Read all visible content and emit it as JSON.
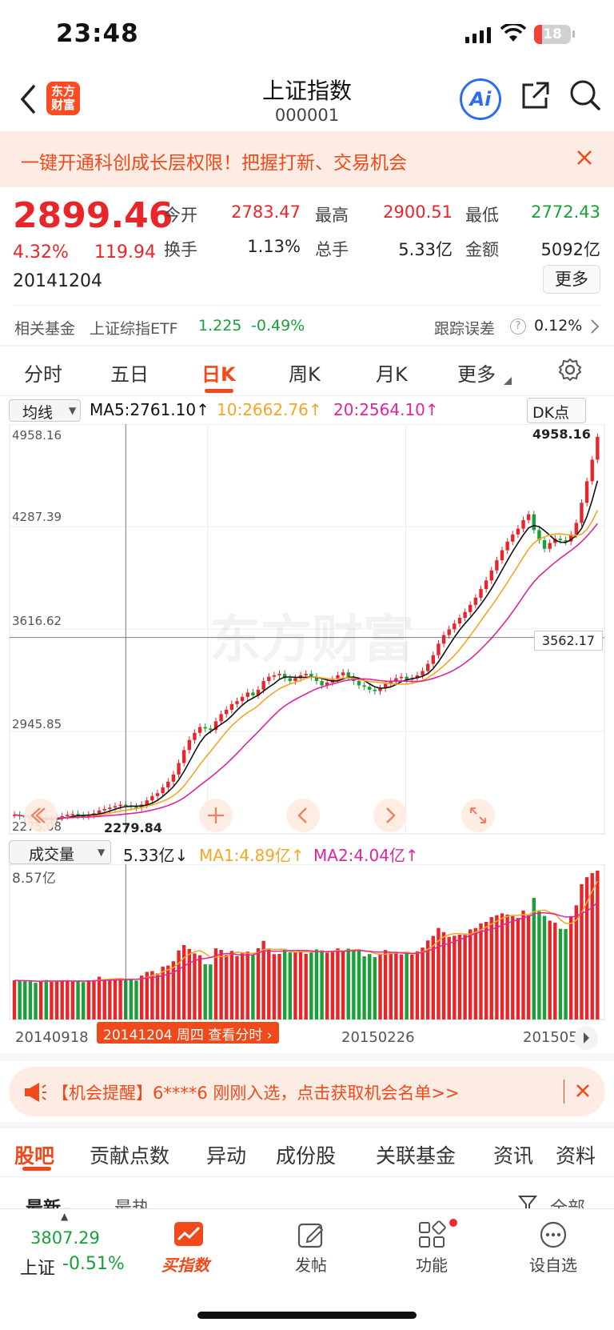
{
  "status": {
    "time": "23:48",
    "battery": "18"
  },
  "header": {
    "title": "上证指数",
    "code": "000001",
    "logo_text": "东方财富",
    "ai_label": "Ai"
  },
  "promo": {
    "text": "一键开通科创成长层权限！把握打新、交易机会"
  },
  "quote": {
    "price": "2899.46",
    "change_pct": "4.32%",
    "change": "119.94",
    "date": "20141204",
    "open_label": "今开",
    "open": "2783.47",
    "high_label": "最高",
    "high": "2900.51",
    "low_label": "最低",
    "low": "2772.43",
    "turnover_label": "换手",
    "turnover": "1.13%",
    "volume_label": "总手",
    "volume": "5.33亿",
    "amount_label": "金额",
    "amount": "5092亿",
    "more_label": "更多"
  },
  "fund": {
    "label": "相关基金",
    "name": "上证综指ETF",
    "price": "1.225",
    "pct": "-0.49%",
    "error_label": "跟踪误差",
    "error": "0.12%"
  },
  "ktabs": [
    "分时",
    "五日",
    "日K",
    "周K",
    "月K",
    "更多"
  ],
  "chart": {
    "ma_select": "均线",
    "ma5": "MA5:2761.10↑",
    "ma10": "10:2662.76↑",
    "ma20": "20:2564.10↑",
    "dk_label": "DK点",
    "y_ticks": [
      "4958.16",
      "4287.39",
      "3616.62",
      "2945.85",
      "2275.08"
    ],
    "max_marker": "4958.16",
    "min_marker": "2279.84",
    "crosshair_value": "3562.17",
    "watermark": "东方财富",
    "vol_select": "成交量",
    "vol_value": "5.33亿↓",
    "vol_ma1": "MA1:4.89亿↑",
    "vol_ma2": "MA2:4.04亿↑",
    "vol_max": "8.57亿",
    "x_labels": [
      "20140918",
      "20150226",
      "201505"
    ],
    "crosshair_date": "20141204 周四 查看分时",
    "colors": {
      "up": "#e8262a",
      "down": "#1aa03a",
      "ma5": "#111111",
      "ma10": "#f5a623",
      "ma20": "#e0249a"
    }
  },
  "chart_data": {
    "type": "candlestick",
    "title": "上证指数 日K",
    "ylim": [
      2275.08,
      4958.16
    ],
    "close": [
      2330,
      2320,
      2310,
      2300,
      2295,
      2305,
      2290,
      2300,
      2310,
      2320,
      2330,
      2335,
      2325,
      2320,
      2330,
      2340,
      2360,
      2370,
      2380,
      2390,
      2400,
      2395,
      2385,
      2380,
      2400,
      2430,
      2460,
      2480,
      2520,
      2560,
      2610,
      2690,
      2780,
      2850,
      2900,
      2940,
      2930,
      2920,
      2980,
      3030,
      3060,
      3100,
      3120,
      3150,
      3180,
      3160,
      3200,
      3260,
      3290,
      3300,
      3310,
      3280,
      3260,
      3280,
      3300,
      3310,
      3290,
      3260,
      3230,
      3250,
      3270,
      3300,
      3320,
      3290,
      3260,
      3230,
      3220,
      3200,
      3190,
      3210,
      3240,
      3260,
      3280,
      3290,
      3270,
      3280,
      3300,
      3330,
      3380,
      3440,
      3520,
      3580,
      3620,
      3660,
      3700,
      3740,
      3790,
      3840,
      3900,
      3960,
      4030,
      4100,
      4170,
      4230,
      4280,
      4320,
      4380,
      4420,
      4310,
      4240,
      4180,
      4220,
      4250,
      4240,
      4230,
      4280,
      4360,
      4500,
      4650,
      4800,
      4958
    ]
  },
  "alert": {
    "text": "【机会提醒】6****6 刚刚入选，点击获取机会名单>>"
  },
  "guba_tabs": [
    "股吧",
    "贡献点数",
    "异动",
    "成份股",
    "关联基金",
    "资讯",
    "资料"
  ],
  "sort_tabs": {
    "latest": "最新",
    "hot": "最热",
    "filter": "全部"
  },
  "tabbar": {
    "index_price": "3807.29",
    "index_name": "上证",
    "index_pct": "-0.51%",
    "buy_label": "买指数",
    "post_label": "发帖",
    "func_label": "功能",
    "fav_label": "设自选"
  }
}
